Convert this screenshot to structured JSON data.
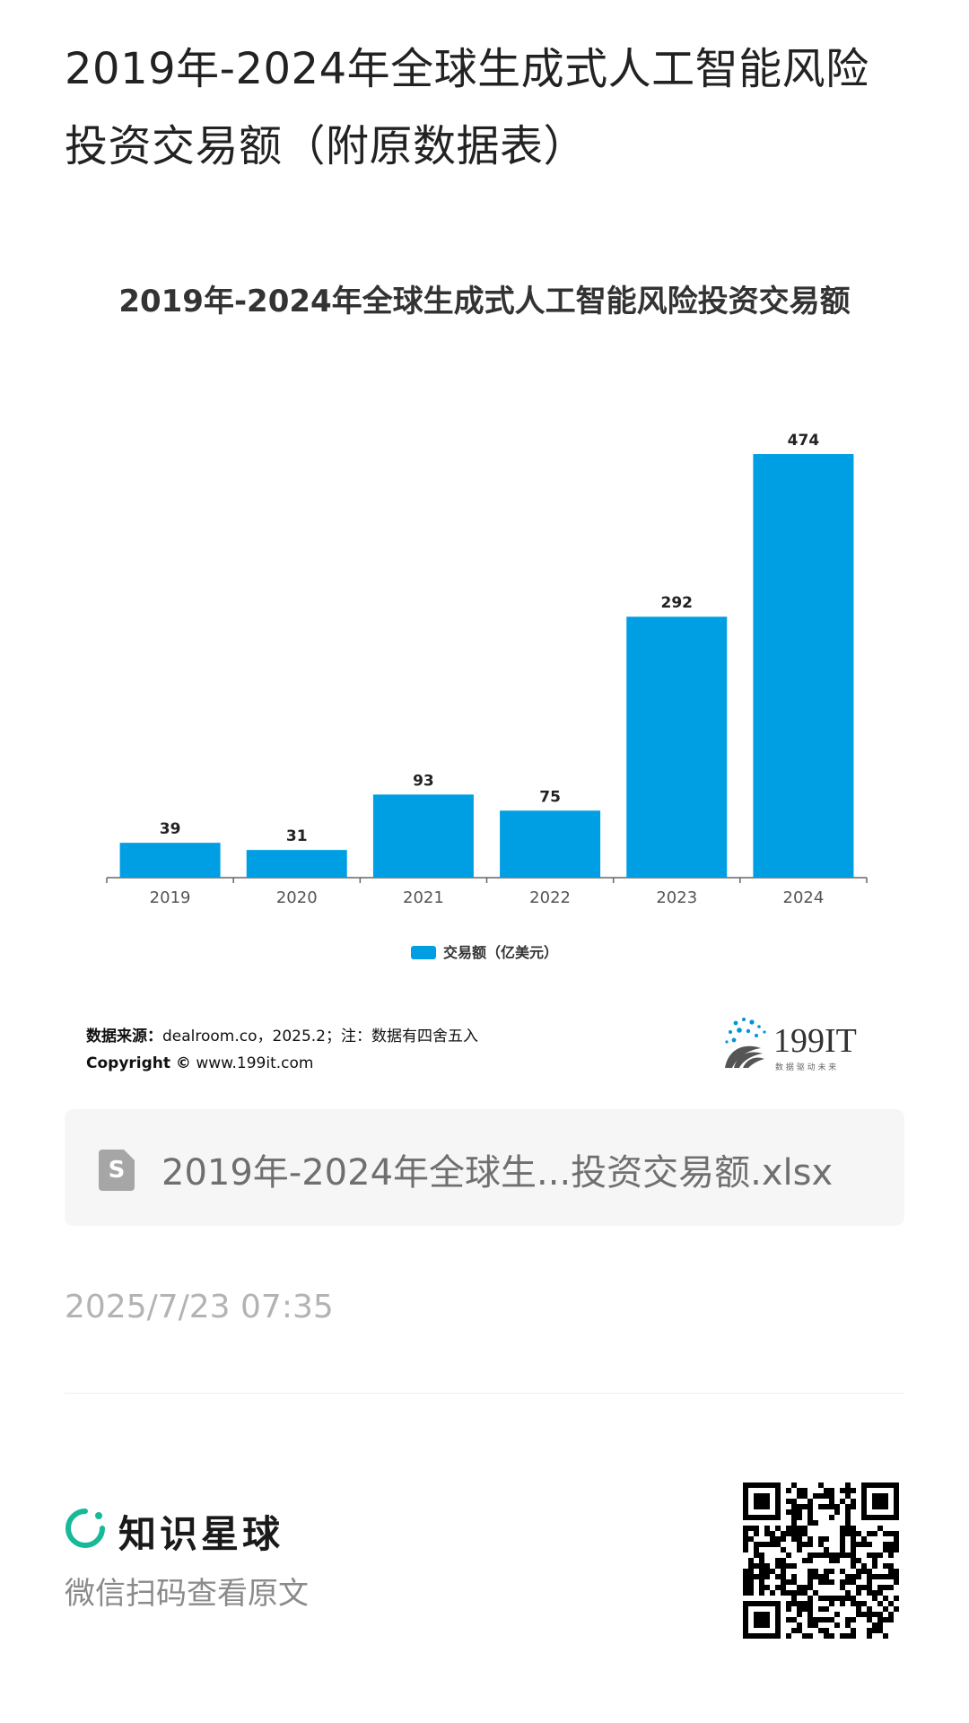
{
  "page": {
    "title": "2019年-2024年全球生成式人工智能风险投资交易额（附原数据表）"
  },
  "chart_data": {
    "type": "bar",
    "title": "2019年-2024年全球生成式人工智能风险投资交易额",
    "categories": [
      "2019",
      "2020",
      "2021",
      "2022",
      "2023",
      "2024"
    ],
    "series": [
      {
        "name": "交易额（亿美元）",
        "values": [
          39,
          31,
          93,
          75,
          292,
          474
        ],
        "color": "#009fe3"
      }
    ],
    "data_labels": [
      "39",
      "31",
      "93",
      "75",
      "292",
      "474"
    ],
    "ylim": [
      0,
      474
    ],
    "grid": false,
    "legend_position": "bottom",
    "source_label": "数据来源：",
    "source_text": "dealroom.co，2025.2；注：数据有四舍五入",
    "copyright_label": "Copyright ©",
    "copyright_text": "www.199it.com",
    "brand_name": "199IT",
    "brand_slogan": "数 据 驱 动 未 来"
  },
  "file": {
    "icon": "spreadsheet-file-icon",
    "name": "2019年-2024年全球生...投资交易额.xlsx"
  },
  "timestamp": "2025/7/23 07:35",
  "footer": {
    "brand": "知识星球",
    "brand_icon": "planet-logo-icon",
    "scan_tip": "微信扫码查看原文",
    "qr_icon": "qr-code-icon",
    "accent_color": "#16b998"
  }
}
